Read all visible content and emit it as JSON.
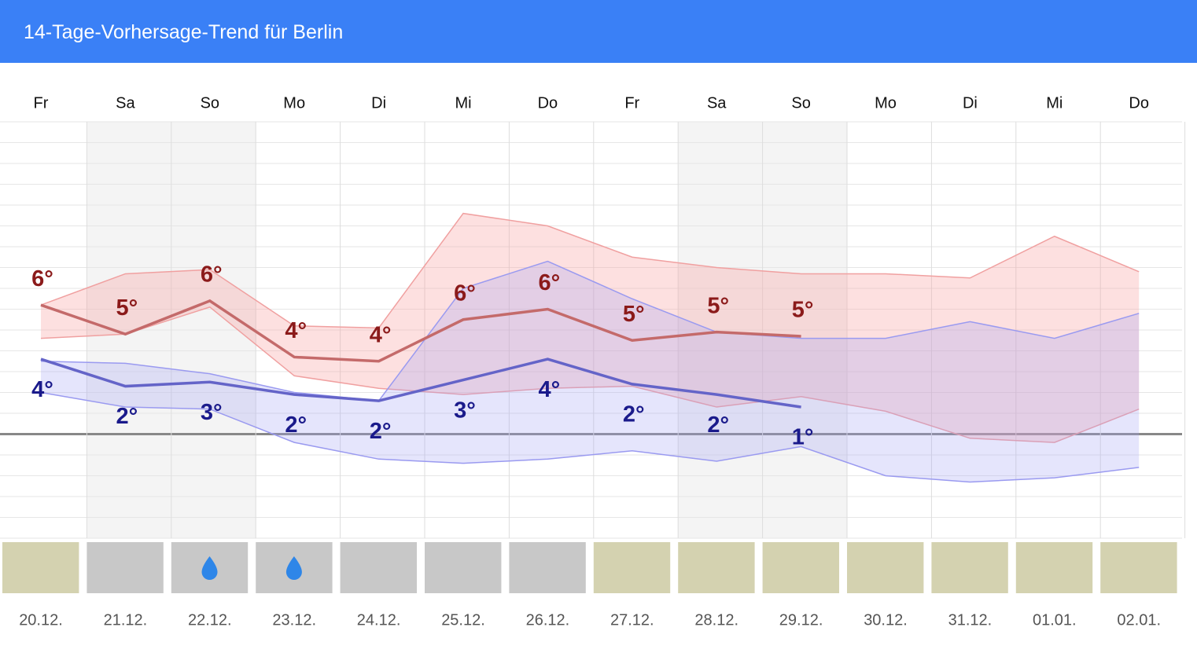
{
  "header": {
    "title": "14-Tage-Vorhersage-Trend für Berlin"
  },
  "chart_data": {
    "type": "line",
    "weekdays": [
      "Fr",
      "Sa",
      "So",
      "Mo",
      "Di",
      "Mi",
      "Do",
      "Fr",
      "Sa",
      "So",
      "Mo",
      "Di",
      "Mi",
      "Do"
    ],
    "categories": [
      "20.12.",
      "21.12.",
      "22.12.",
      "23.12.",
      "24.12.",
      "25.12.",
      "26.12.",
      "27.12.",
      "28.12.",
      "29.12.",
      "30.12.",
      "31.12.",
      "01.01.",
      "02.01."
    ],
    "weekend": [
      false,
      true,
      true,
      false,
      false,
      false,
      false,
      false,
      true,
      true,
      false,
      false,
      false,
      false
    ],
    "ylim": [
      -5,
      15
    ],
    "yticks": [
      -5,
      -4,
      -3,
      -2,
      -1,
      0,
      1,
      2,
      3,
      4,
      5,
      6,
      7,
      8,
      9,
      10,
      11,
      12,
      13,
      14,
      15
    ],
    "series": [
      {
        "name": "max",
        "color": "#c46a6a",
        "label_color": "#8b1a1a",
        "values": [
          6.2,
          4.8,
          6.4,
          3.7,
          3.5,
          5.5,
          6.0,
          4.5,
          4.9,
          4.7,
          null,
          null,
          null,
          null
        ],
        "value_labels": [
          "6°",
          "5°",
          "6°",
          "4°",
          "4°",
          "6°",
          "6°",
          "5°",
          "5°",
          "5°",
          null,
          null,
          null,
          null
        ]
      },
      {
        "name": "min",
        "color": "#6464c8",
        "label_color": "#1a1a8b",
        "values": [
          3.6,
          2.3,
          2.5,
          1.9,
          1.6,
          2.6,
          3.6,
          2.4,
          1.9,
          1.3,
          null,
          null,
          null,
          null
        ],
        "value_labels": [
          "4°",
          "2°",
          "3°",
          "2°",
          "2°",
          "3°",
          "4°",
          "2°",
          "2°",
          "1°",
          null,
          null,
          null,
          null
        ]
      }
    ],
    "bands": [
      {
        "name": "max-range",
        "fill": "rgba(248,160,160,0.33)",
        "stroke": "#f0a0a0",
        "upper": [
          6.2,
          7.7,
          7.9,
          5.2,
          5.1,
          10.6,
          10.0,
          8.5,
          8.0,
          7.7,
          7.7,
          7.5,
          9.5,
          7.8
        ],
        "lower": [
          4.6,
          4.8,
          6.1,
          2.8,
          2.2,
          1.9,
          2.2,
          2.3,
          1.3,
          1.8,
          1.1,
          -0.2,
          -0.4,
          1.2
        ]
      },
      {
        "name": "min-range",
        "fill": "rgba(160,160,245,0.28)",
        "stroke": "#9a9af0",
        "upper": [
          3.5,
          3.4,
          2.9,
          2.0,
          1.6,
          7.0,
          8.3,
          6.5,
          4.9,
          4.6,
          4.6,
          5.4,
          4.6,
          5.8
        ],
        "lower": [
          2.0,
          1.3,
          1.2,
          -0.4,
          -1.2,
          -1.4,
          -1.2,
          -0.8,
          -1.3,
          -0.6,
          -2.0,
          -2.3,
          -2.1,
          -1.6
        ]
      }
    ],
    "tiles": [
      {
        "color": "#d4d2b0",
        "rain": false
      },
      {
        "color": "#c8c8c8",
        "rain": false
      },
      {
        "color": "#c8c8c8",
        "rain": true
      },
      {
        "color": "#c8c8c8",
        "rain": true
      },
      {
        "color": "#c8c8c8",
        "rain": false
      },
      {
        "color": "#c8c8c8",
        "rain": false
      },
      {
        "color": "#c8c8c8",
        "rain": false
      },
      {
        "color": "#d4d2b0",
        "rain": false
      },
      {
        "color": "#d4d2b0",
        "rain": false
      },
      {
        "color": "#d4d2b0",
        "rain": false
      },
      {
        "color": "#d4d2b0",
        "rain": false
      },
      {
        "color": "#d4d2b0",
        "rain": false
      },
      {
        "color": "#d4d2b0",
        "rain": false
      },
      {
        "color": "#d4d2b0",
        "rain": false
      }
    ],
    "grid": true
  }
}
